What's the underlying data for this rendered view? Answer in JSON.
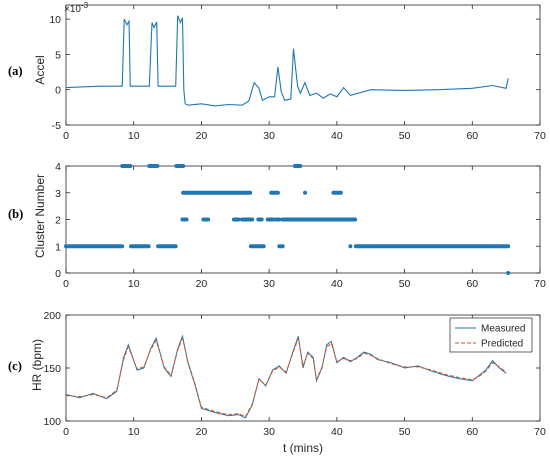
{
  "figure": {
    "panel_a_label": "(a)",
    "panel_b_label": "(b)",
    "panel_c_label": "(c)"
  },
  "chart_data": [
    {
      "type": "line",
      "panel": "(a)",
      "ylabel": "Accel",
      "xlabel": "",
      "y_multiplier": "×10",
      "y_exponent": "-3",
      "xlim": [
        0,
        70
      ],
      "ylim": [
        -5,
        12
      ],
      "xticks": [
        0,
        10,
        20,
        30,
        40,
        50,
        60,
        70
      ],
      "yticks": [
        -5,
        0,
        5,
        10
      ],
      "color": "#1f77b4",
      "series": [
        {
          "x": [
            0,
            5,
            8.3,
            8.6,
            9.0,
            9.3,
            9.5,
            12.3,
            12.7,
            13.0,
            13.4,
            13.6,
            16.2,
            16.5,
            16.9,
            17.2,
            17.4,
            17.6,
            18,
            20,
            22,
            24,
            26,
            27,
            27.8,
            28.5,
            29,
            30,
            30.8,
            31.3,
            31.8,
            32.3,
            33.2,
            33.6,
            34.2,
            34.6,
            35.3,
            36,
            37,
            38,
            39,
            40,
            41,
            42,
            45,
            50,
            55,
            60,
            63,
            65,
            65.3
          ],
          "y": [
            0.3,
            0.5,
            0.5,
            10.0,
            9.2,
            9.7,
            0.5,
            0.5,
            9.5,
            8.8,
            9.6,
            0.5,
            0.5,
            10.5,
            9.5,
            10.2,
            0.0,
            -2.0,
            -2.2,
            -2.0,
            -2.3,
            -2.1,
            -2.2,
            -1.6,
            1.0,
            0.2,
            -1.5,
            -1.0,
            -1.0,
            3.2,
            -0.3,
            -1.5,
            -1.3,
            5.8,
            0.5,
            -0.5,
            1.0,
            -0.8,
            -0.5,
            -1.2,
            -0.6,
            -1.0,
            0.3,
            -0.8,
            0.0,
            -0.1,
            0.0,
            0.2,
            0.6,
            0.2,
            1.6
          ]
        }
      ]
    },
    {
      "type": "scatter",
      "panel": "(b)",
      "ylabel": "Cluster Number",
      "xlabel": "",
      "xlim": [
        0,
        70
      ],
      "ylim": [
        0,
        4
      ],
      "xticks": [
        0,
        10,
        20,
        30,
        40,
        50,
        60,
        70
      ],
      "yticks": [
        0,
        1,
        2,
        3,
        4
      ],
      "color": "#1f77b4",
      "segments": [
        {
          "y": 4,
          "x": [
            8.3,
            9.5
          ]
        },
        {
          "y": 4,
          "x": [
            12.3,
            13.5
          ]
        },
        {
          "y": 4,
          "x": [
            16.3,
            17.3
          ]
        },
        {
          "y": 4,
          "x": [
            33.8,
            34.6
          ]
        },
        {
          "y": 3,
          "x": [
            17.3,
            27.2
          ]
        },
        {
          "y": 3,
          "x": [
            30.3,
            31.3
          ]
        },
        {
          "y": 3,
          "x": [
            39.5,
            40.6
          ]
        },
        {
          "y": 2,
          "x": [
            17.2,
            17.8
          ]
        },
        {
          "y": 2,
          "x": [
            20.3,
            21.0
          ]
        },
        {
          "y": 2,
          "x": [
            24.8,
            25.5
          ]
        },
        {
          "y": 2,
          "x": [
            26.0,
            27.5
          ]
        },
        {
          "y": 2,
          "x": [
            28.4,
            28.9
          ]
        },
        {
          "y": 2,
          "x": [
            29.8,
            30.6
          ]
        },
        {
          "y": 2,
          "x": [
            31.0,
            31.5
          ]
        },
        {
          "y": 2,
          "x": [
            32.0,
            42.7
          ]
        },
        {
          "y": 1,
          "x": [
            0,
            8.3
          ]
        },
        {
          "y": 1,
          "x": [
            9.6,
            12.2
          ]
        },
        {
          "y": 1,
          "x": [
            13.6,
            16.2
          ]
        },
        {
          "y": 1,
          "x": [
            27.3,
            29.2
          ]
        },
        {
          "y": 1,
          "x": [
            31.5,
            32.0
          ]
        },
        {
          "y": 1,
          "x": [
            42.8,
            65.3
          ]
        }
      ],
      "points": [
        {
          "x": 35.3,
          "y": 3
        },
        {
          "x": 42.0,
          "y": 1
        },
        {
          "x": 65.3,
          "y": 0
        }
      ]
    },
    {
      "type": "line",
      "panel": "(c)",
      "ylabel": "HR (bpm)",
      "xlabel": "t (mins)",
      "xlim": [
        0,
        70
      ],
      "ylim": [
        100,
        200
      ],
      "xticks": [
        0,
        10,
        20,
        30,
        40,
        50,
        60,
        70
      ],
      "yticks": [
        100,
        150,
        200
      ],
      "legend_position": "top-right",
      "series": [
        {
          "name": "Measured",
          "color": "#1f77b4",
          "dash": "solid",
          "x": [
            0,
            2,
            4,
            6,
            7.5,
            8.5,
            9.2,
            10.5,
            11.5,
            12.5,
            13.3,
            14.5,
            15.5,
            16.5,
            17.2,
            18,
            19,
            20,
            22,
            24,
            25.5,
            26.5,
            27.5,
            28.5,
            29.5,
            30.5,
            31.5,
            32.5,
            33.5,
            34.3,
            35,
            35.7,
            36.5,
            37,
            37.8,
            38.5,
            39.2,
            40,
            41,
            42,
            43,
            44,
            45,
            46,
            48,
            50,
            52,
            54,
            56,
            58,
            60,
            61,
            62,
            63,
            64,
            65
          ],
          "y": [
            125,
            122,
            126,
            121,
            128,
            160,
            172,
            148,
            150,
            168,
            178,
            150,
            142,
            168,
            180,
            155,
            135,
            112,
            108,
            105,
            106,
            103,
            115,
            140,
            133,
            148,
            152,
            145,
            165,
            180,
            150,
            165,
            160,
            138,
            150,
            172,
            175,
            155,
            160,
            156,
            160,
            165,
            163,
            158,
            155,
            150,
            152,
            147,
            143,
            140,
            138,
            143,
            148,
            157,
            150,
            145
          ]
        },
        {
          "name": "Predicted",
          "color": "#d95319",
          "dash": "dashed",
          "x": [
            0,
            2,
            4,
            6,
            7.5,
            8.5,
            9.2,
            10.5,
            11.5,
            12.5,
            13.3,
            14.5,
            15.5,
            16.5,
            17.2,
            18,
            19,
            20,
            22,
            24,
            25.5,
            26.5,
            27.5,
            28.5,
            29.5,
            30.5,
            31.5,
            32.5,
            33.5,
            34.3,
            35,
            35.7,
            36.5,
            37,
            37.8,
            38.5,
            39.2,
            40,
            41,
            42,
            43,
            44,
            45,
            46,
            48,
            50,
            52,
            54,
            56,
            58,
            60,
            61,
            62,
            63,
            64,
            65
          ],
          "y": [
            124,
            123,
            125,
            122,
            129,
            158,
            170,
            149,
            151,
            167,
            176,
            151,
            143,
            167,
            178,
            156,
            136,
            113,
            109,
            106,
            107,
            104,
            116,
            139,
            134,
            147,
            151,
            146,
            164,
            178,
            152,
            164,
            159,
            139,
            151,
            170,
            173,
            156,
            159,
            157,
            159,
            164,
            162,
            159,
            154,
            151,
            151,
            148,
            144,
            141,
            139,
            142,
            147,
            155,
            151,
            146
          ]
        }
      ]
    }
  ]
}
